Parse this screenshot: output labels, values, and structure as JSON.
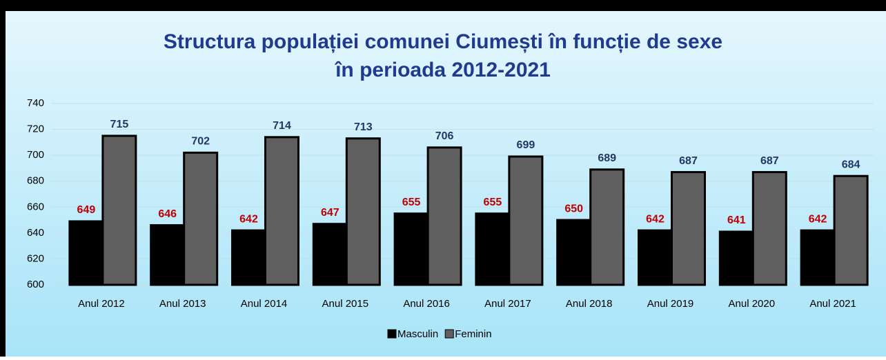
{
  "chart_data": {
    "type": "bar",
    "title": [
      "Structura populației comunei Ciumești în funcție de sexe",
      "în perioada 2012-2021"
    ],
    "categories": [
      "Anul 2012",
      "Anul 2013",
      "Anul 2014",
      "Anul 2015",
      "Anul 2016",
      "Anul 2017",
      "Anul 2018",
      "Anul 2019",
      "Anul 2020",
      "Anul 2021"
    ],
    "series": [
      {
        "name": "Masculin",
        "color": "#000000",
        "label_color": "#c00000",
        "values": [
          649,
          646,
          642,
          647,
          655,
          655,
          650,
          642,
          641,
          642
        ]
      },
      {
        "name": "Feminin",
        "color": "#5f5f5f",
        "label_color": "#1f3864",
        "values": [
          715,
          702,
          714,
          713,
          706,
          699,
          689,
          687,
          687,
          684
        ]
      }
    ],
    "ylim": [
      600,
      740
    ],
    "yticks": [
      600,
      620,
      640,
      660,
      680,
      700,
      720,
      740
    ],
    "grid": true,
    "legend": "bottom"
  }
}
